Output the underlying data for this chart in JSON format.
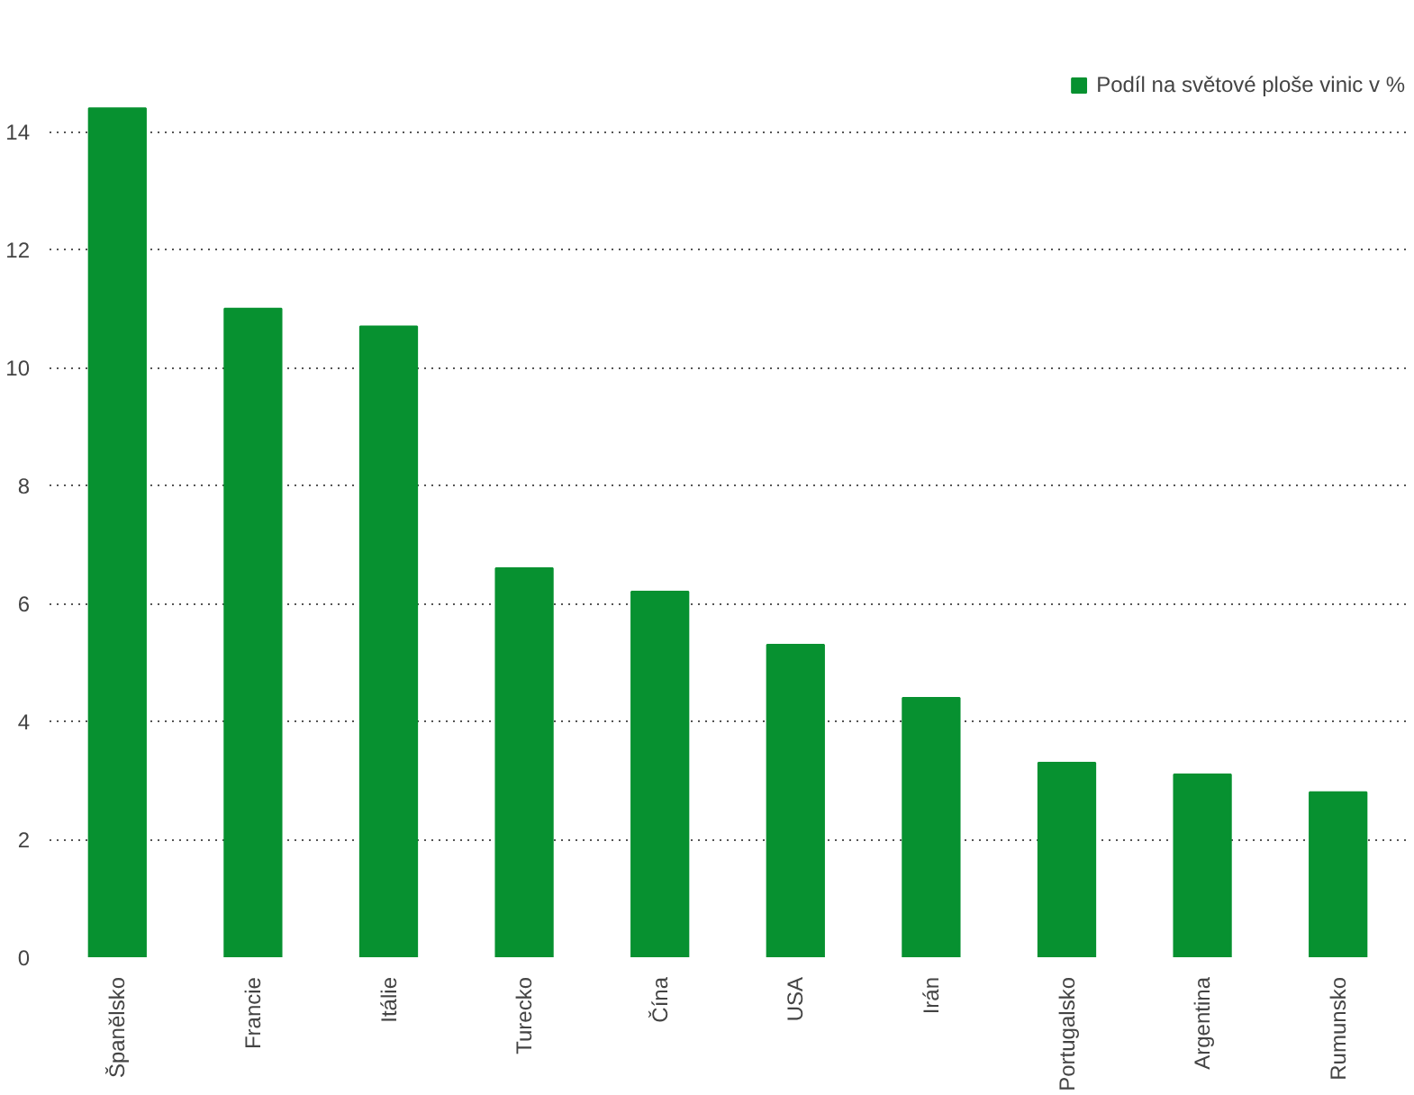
{
  "chart_data": {
    "type": "bar",
    "categories": [
      "Španělsko",
      "Francie",
      "Itálie",
      "Turecko",
      "Čína",
      "USA",
      "Irán",
      "Portugalsko",
      "Argentina",
      "Rumunsko"
    ],
    "series": [
      {
        "name": "Podíl na světové ploše vinic v %",
        "color": "#079130",
        "values": [
          14.4,
          11.0,
          10.7,
          6.6,
          6.2,
          5.3,
          4.4,
          3.3,
          3.1,
          2.8
        ]
      }
    ],
    "ylim": [
      0,
      15
    ],
    "yticks": [
      0,
      2,
      4,
      6,
      8,
      10,
      12,
      14
    ],
    "grid": "y",
    "legend": "top right"
  }
}
